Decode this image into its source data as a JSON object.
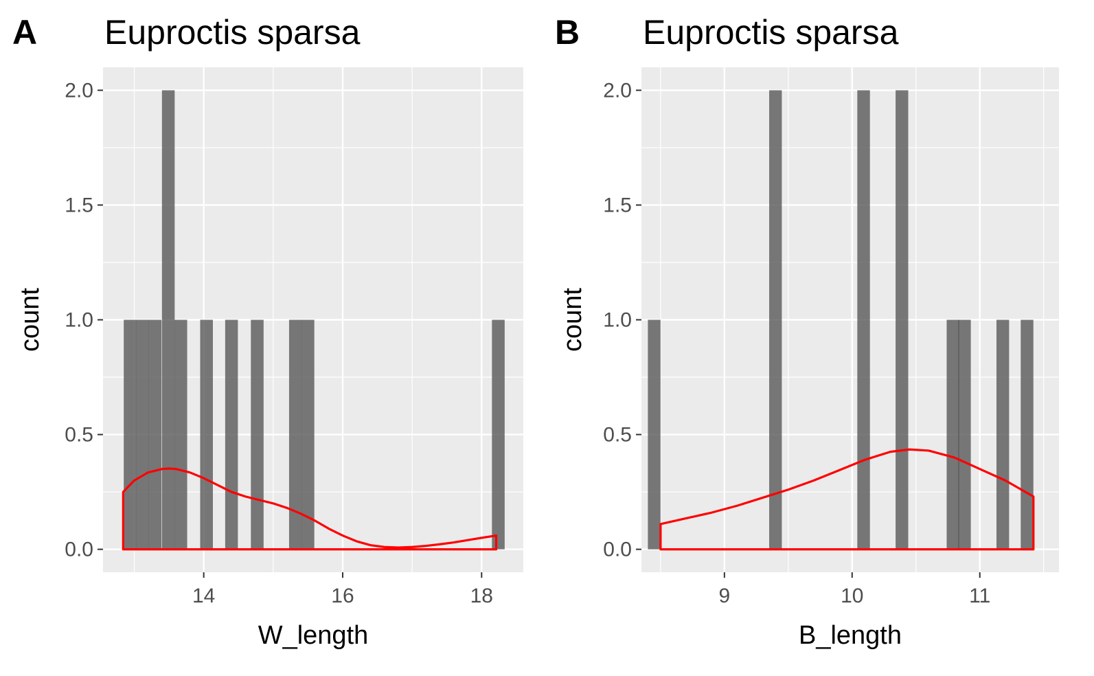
{
  "chart_data": [
    {
      "type": "bar",
      "panel_tag": "A",
      "title": "Euproctis sparsa",
      "xlabel": "W_length",
      "ylabel": "count",
      "xlim": [
        12.55,
        18.6
      ],
      "ylim": [
        -0.1,
        2.1
      ],
      "xticks": [
        14,
        16,
        18
      ],
      "xtick_labels": [
        "14",
        "16",
        "18"
      ],
      "yticks": [
        0,
        0.5,
        1,
        1.5,
        2
      ],
      "ytick_labels": [
        "0.0",
        "0.5",
        "1.0",
        "1.5",
        "2.0"
      ],
      "bin_width": 0.183,
      "bars": [
        {
          "x": 12.94,
          "count": 1
        },
        {
          "x": 13.12,
          "count": 1
        },
        {
          "x": 13.3,
          "count": 1
        },
        {
          "x": 13.49,
          "count": 2
        },
        {
          "x": 13.67,
          "count": 1
        },
        {
          "x": 14.04,
          "count": 1
        },
        {
          "x": 14.4,
          "count": 1
        },
        {
          "x": 14.77,
          "count": 1
        },
        {
          "x": 15.32,
          "count": 1
        },
        {
          "x": 15.5,
          "count": 1
        },
        {
          "x": 18.24,
          "count": 1
        }
      ],
      "density": {
        "color": "#ff0000",
        "x": [
          12.84,
          13.0,
          13.2,
          13.4,
          13.5,
          13.6,
          13.8,
          14.0,
          14.2,
          14.4,
          14.6,
          14.8,
          15.0,
          15.2,
          15.4,
          15.6,
          15.8,
          16.0,
          16.2,
          16.4,
          16.6,
          16.8,
          17.0,
          17.2,
          17.4,
          17.6,
          17.8,
          18.0,
          18.21
        ],
        "y": [
          0.25,
          0.3,
          0.335,
          0.35,
          0.352,
          0.35,
          0.335,
          0.31,
          0.28,
          0.25,
          0.23,
          0.215,
          0.2,
          0.18,
          0.155,
          0.125,
          0.09,
          0.06,
          0.035,
          0.018,
          0.01,
          0.008,
          0.01,
          0.015,
          0.022,
          0.03,
          0.04,
          0.05,
          0.06
        ]
      }
    },
    {
      "type": "bar",
      "panel_tag": "B",
      "title": "Euproctis sparsa",
      "xlabel": "B_length",
      "ylabel": "count",
      "xlim": [
        8.35,
        11.62
      ],
      "ylim": [
        -0.1,
        2.1
      ],
      "xticks": [
        9,
        10,
        11
      ],
      "xtick_labels": [
        "9",
        "10",
        "11"
      ],
      "yticks": [
        0,
        0.5,
        1,
        1.5,
        2
      ],
      "yticks_labels_note": "",
      "ytick_labels": [
        "0.0",
        "0.5",
        "1.0",
        "1.5",
        "2.0"
      ],
      "bin_width": 0.099,
      "bars": [
        {
          "x": 8.45,
          "count": 1
        },
        {
          "x": 9.4,
          "count": 2
        },
        {
          "x": 10.09,
          "count": 2
        },
        {
          "x": 10.39,
          "count": 2
        },
        {
          "x": 10.79,
          "count": 1
        },
        {
          "x": 10.88,
          "count": 1
        },
        {
          "x": 11.18,
          "count": 1
        },
        {
          "x": 11.37,
          "count": 1
        }
      ],
      "density": {
        "color": "#ff0000",
        "x": [
          8.5,
          8.7,
          8.9,
          9.1,
          9.3,
          9.5,
          9.7,
          9.9,
          10.1,
          10.3,
          10.45,
          10.6,
          10.8,
          11.0,
          11.2,
          11.42
        ],
        "y": [
          0.11,
          0.135,
          0.16,
          0.19,
          0.225,
          0.26,
          0.3,
          0.345,
          0.39,
          0.425,
          0.435,
          0.43,
          0.4,
          0.35,
          0.3,
          0.23
        ]
      }
    }
  ]
}
